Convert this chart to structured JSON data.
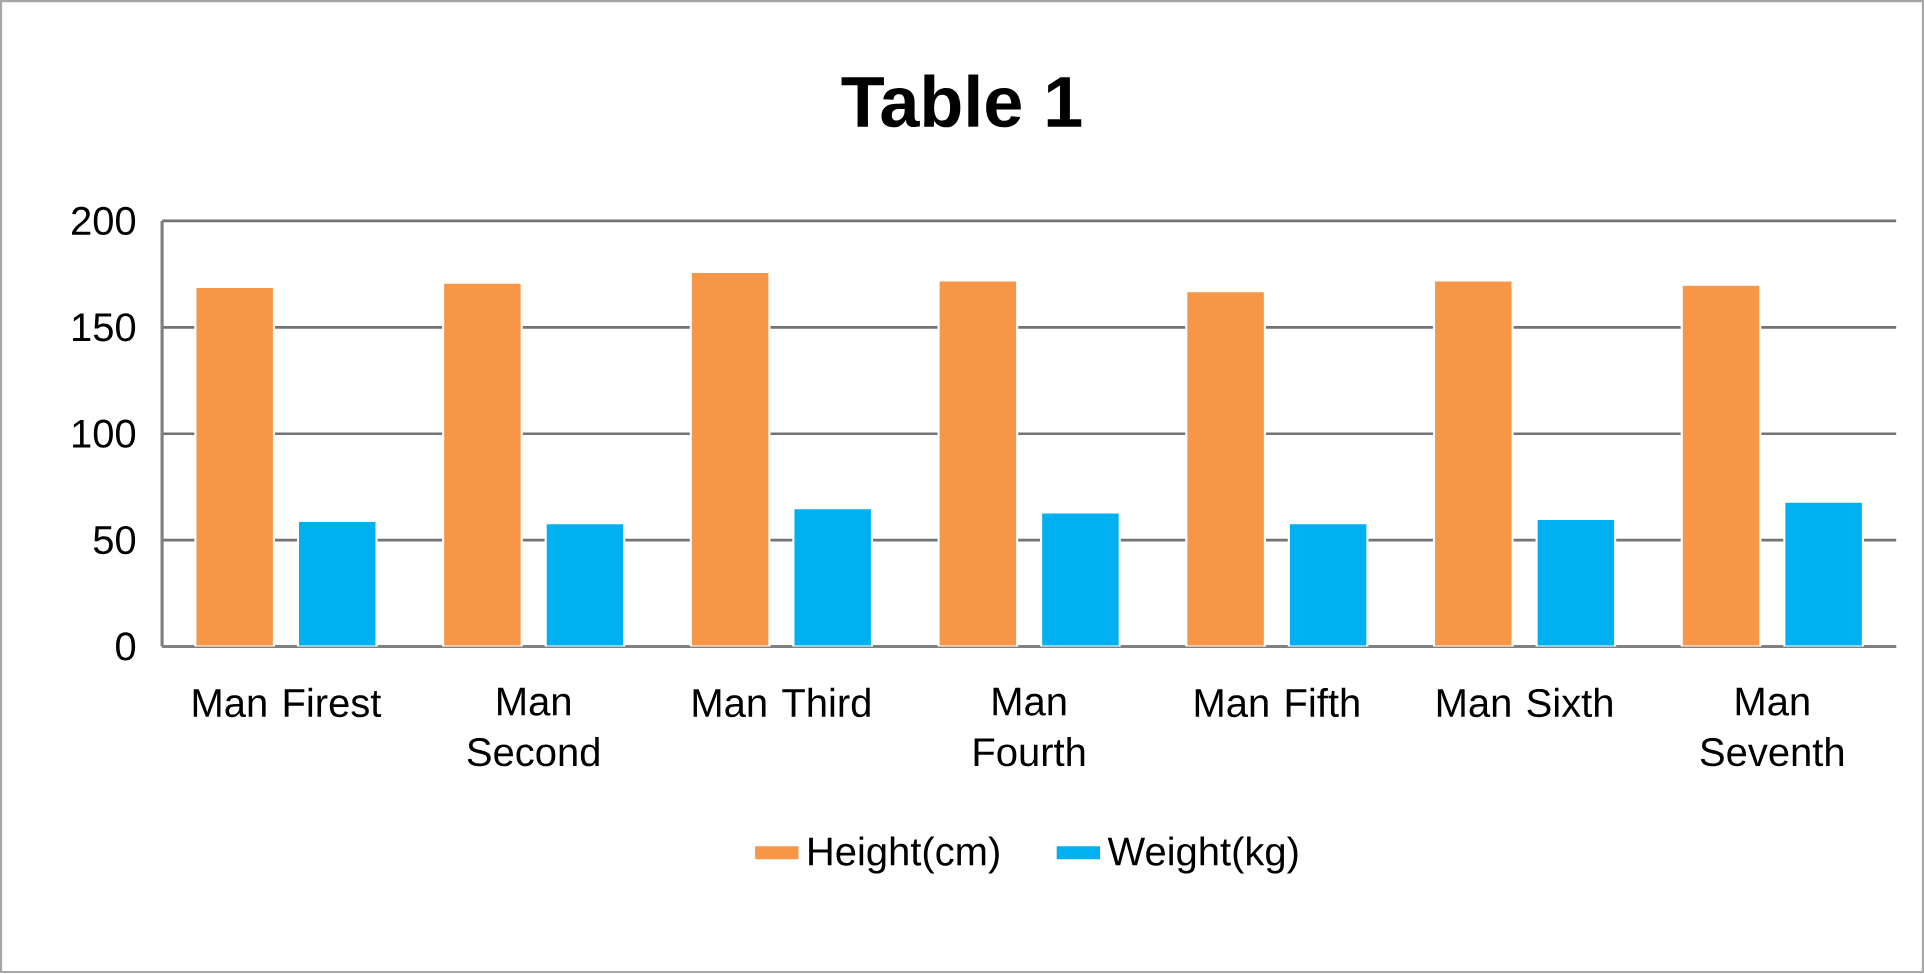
{
  "chart_data": {
    "type": "bar",
    "title": "Table 1",
    "categories": [
      "Man Firest",
      "Man Second",
      "Man Third",
      "Man Fourth",
      "Man Fifth",
      "Man Sixth",
      "Man Seventh"
    ],
    "series": [
      {
        "name": "Height(cm)",
        "color": "#f79646",
        "values": [
          169,
          171,
          176,
          172,
          167,
          172,
          170
        ]
      },
      {
        "name": "Weight(kg)",
        "color": "#00b0f0",
        "values": [
          59,
          58,
          65,
          63,
          58,
          60,
          68
        ]
      }
    ],
    "ylim": [
      0,
      200
    ],
    "yticks": [
      0,
      50,
      100,
      150,
      200
    ],
    "grid": "y",
    "legend": "bottom"
  }
}
